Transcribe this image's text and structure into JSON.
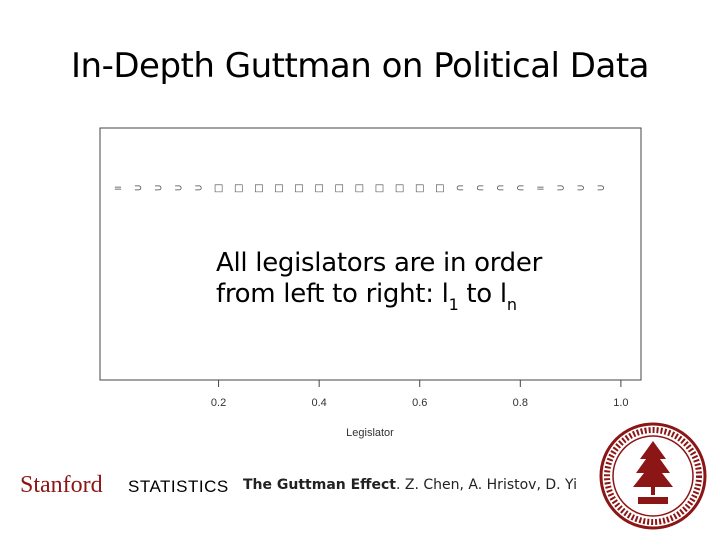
{
  "slide": {
    "title": "In-Depth Guttman on Political Data",
    "annotation_line1": "All legislators are in order",
    "annotation_line2_prefix": "from left to right: l",
    "annotation_sub1": "1",
    "annotation_mid": " to l",
    "annotation_subn": "n"
  },
  "chart_data": {
    "type": "scatter",
    "xlabel": "Legislator",
    "xticks": [
      "0.2",
      "0.4",
      "0.6",
      "0.8",
      "1.0"
    ],
    "xtick_values": [
      0.2,
      0.4,
      0.6,
      0.8,
      1.0
    ],
    "xlim": [
      0.0,
      1.04
    ],
    "marker_glyphs": [
      "=",
      "⊃",
      "⊃",
      "⊃",
      "⊃",
      "□",
      "□",
      "□",
      "□",
      "□",
      "□",
      "□",
      "□",
      "□",
      "□",
      "□",
      "□",
      "⊂",
      "⊂",
      "⊂",
      "⊂",
      "=",
      "⊃",
      "⊃",
      "⊃"
    ],
    "marker_x": [
      0.0,
      0.04,
      0.08,
      0.12,
      0.16,
      0.2,
      0.24,
      0.28,
      0.32,
      0.36,
      0.4,
      0.44,
      0.48,
      0.52,
      0.56,
      0.6,
      0.64,
      0.68,
      0.72,
      0.76,
      0.8,
      0.84,
      0.88,
      0.92,
      0.96
    ],
    "grid": false
  },
  "footer": {
    "stanford": "Stanford",
    "statistics": "STATISTICS",
    "cite_bold": "The Guttman Effect",
    "cite_rest": ". Z. Chen, A. Hristov, D. Yi"
  },
  "colors": {
    "stanford_red": "#8c1515",
    "axis": "#444444"
  }
}
